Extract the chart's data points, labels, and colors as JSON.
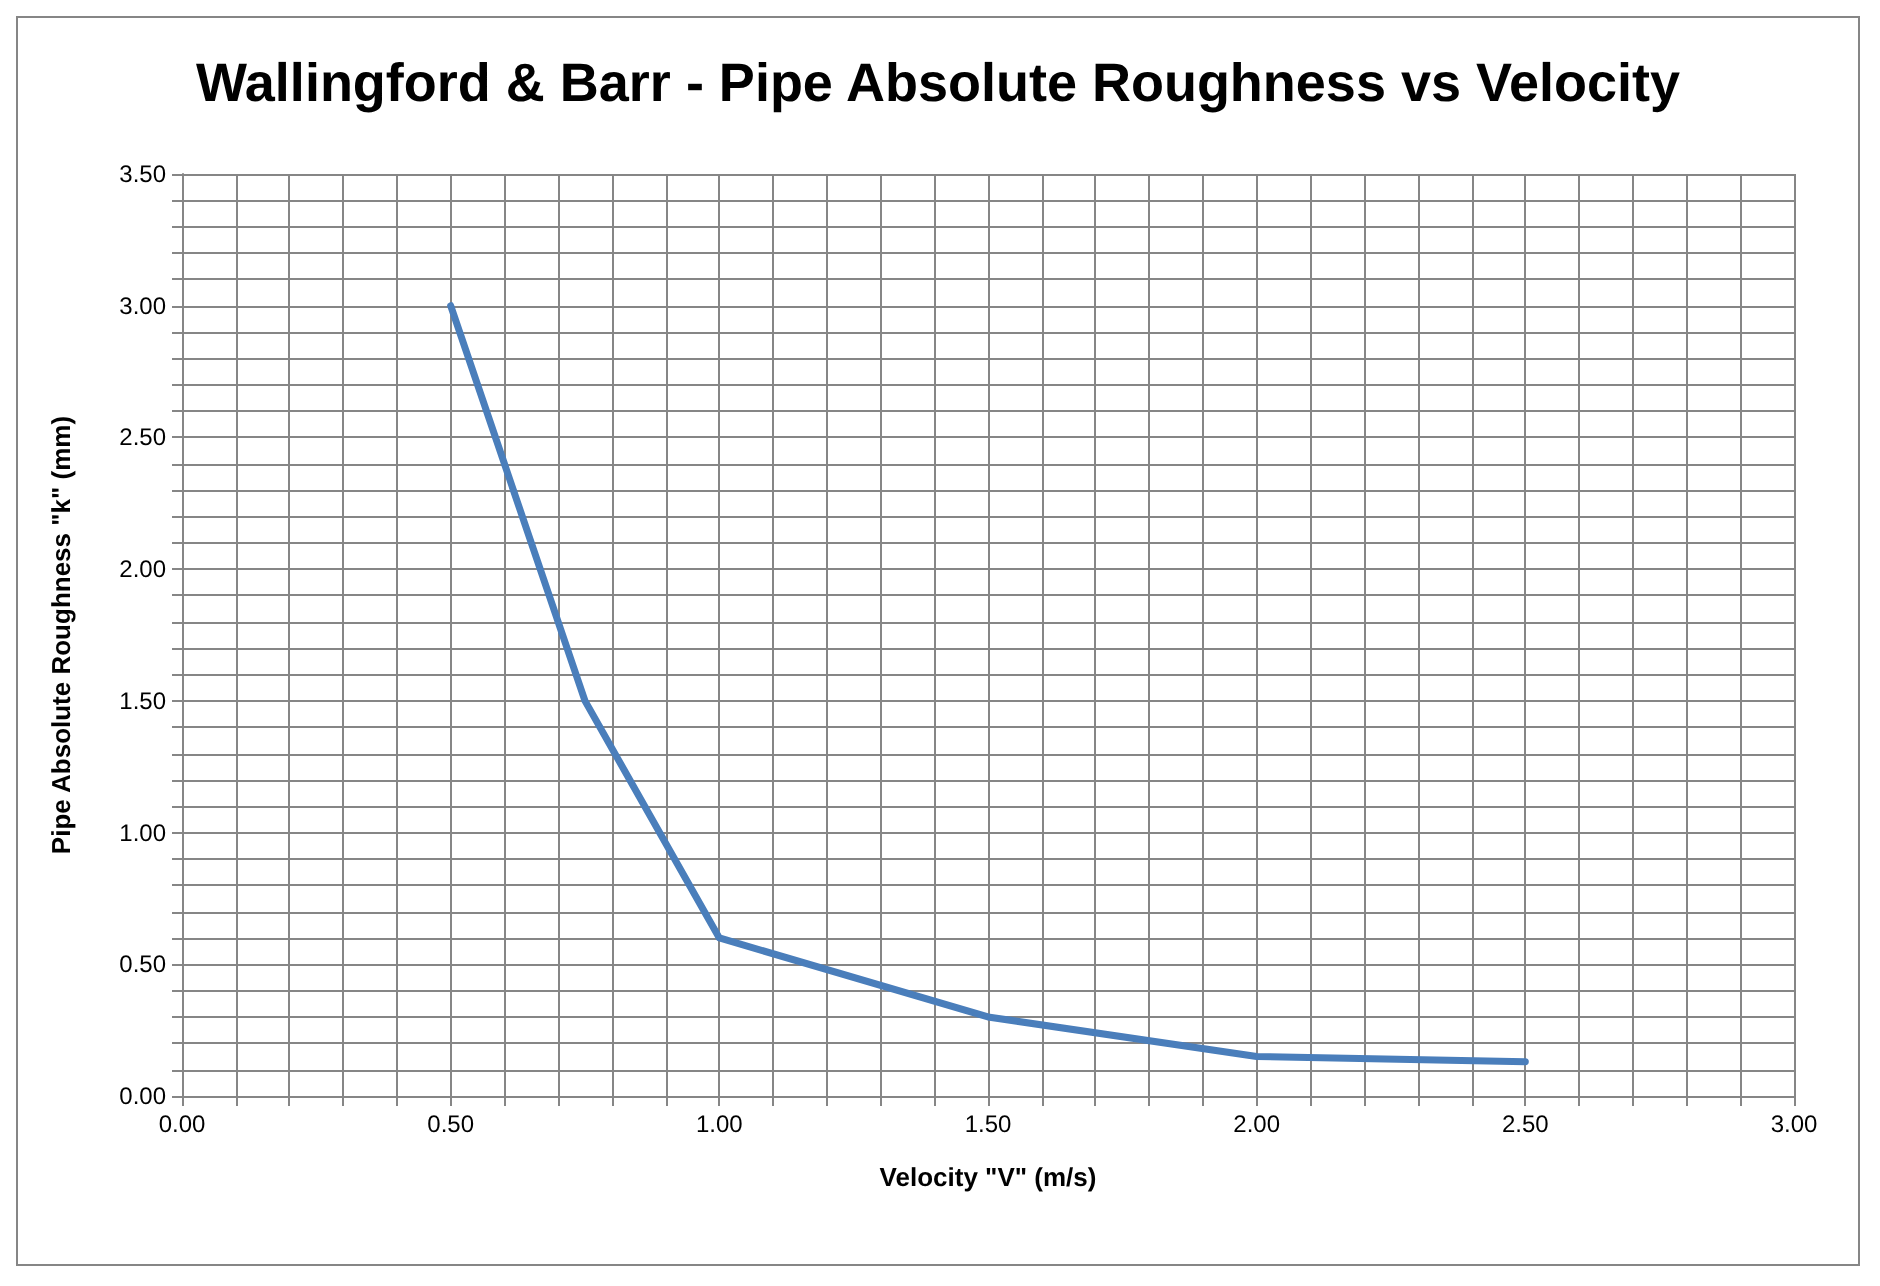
{
  "chart_data": {
    "type": "line",
    "title": "Wallingford & Barr - Pipe Absolute Roughness vs Velocity",
    "xlabel": "Velocity \"V\" (m/s)",
    "ylabel": "Pipe Absolute Roughness \"k\" (mm)",
    "x": [
      0.5,
      0.75,
      1.0,
      1.5,
      2.0,
      2.5
    ],
    "series": [
      {
        "color": "#4a7ebb",
        "values": [
          3.0,
          1.5,
          0.6,
          0.3,
          0.15,
          0.13
        ]
      }
    ],
    "xlim": [
      0,
      3
    ],
    "ylim": [
      0,
      3.5
    ],
    "xticks": [
      {
        "value": 0,
        "label": "0.00"
      },
      {
        "value": 0.1,
        "label": null
      },
      {
        "value": 0.2,
        "label": null
      },
      {
        "value": 0.3,
        "label": null
      },
      {
        "value": 0.4,
        "label": null
      },
      {
        "value": 0.5,
        "label": "0.50"
      },
      {
        "value": 0.6,
        "label": null
      },
      {
        "value": 0.7,
        "label": null
      },
      {
        "value": 0.8,
        "label": null
      },
      {
        "value": 0.9,
        "label": null
      },
      {
        "value": 1,
        "label": "1.00"
      },
      {
        "value": 1.1,
        "label": null
      },
      {
        "value": 1.2,
        "label": null
      },
      {
        "value": 1.3,
        "label": null
      },
      {
        "value": 1.4,
        "label": null
      },
      {
        "value": 1.5,
        "label": "1.50"
      },
      {
        "value": 1.6,
        "label": null
      },
      {
        "value": 1.7,
        "label": null
      },
      {
        "value": 1.8,
        "label": null
      },
      {
        "value": 1.9,
        "label": null
      },
      {
        "value": 2,
        "label": "2.00"
      },
      {
        "value": 2.1,
        "label": null
      },
      {
        "value": 2.2,
        "label": null
      },
      {
        "value": 2.3,
        "label": null
      },
      {
        "value": 2.4,
        "label": null
      },
      {
        "value": 2.5,
        "label": "2.50"
      },
      {
        "value": 2.6,
        "label": null
      },
      {
        "value": 2.7,
        "label": null
      },
      {
        "value": 2.8,
        "label": null
      },
      {
        "value": 2.9,
        "label": null
      },
      {
        "value": 3,
        "label": "3.00"
      }
    ],
    "yticks": [
      {
        "value": 0,
        "label": "0.00"
      },
      {
        "value": 0.1,
        "label": null
      },
      {
        "value": 0.2,
        "label": null
      },
      {
        "value": 0.3,
        "label": null
      },
      {
        "value": 0.4,
        "label": null
      },
      {
        "value": 0.5,
        "label": "0.50"
      },
      {
        "value": 0.6,
        "label": null
      },
      {
        "value": 0.7,
        "label": null
      },
      {
        "value": 0.8,
        "label": null
      },
      {
        "value": 0.9,
        "label": null
      },
      {
        "value": 1,
        "label": "1.00"
      },
      {
        "value": 1.1,
        "label": null
      },
      {
        "value": 1.2,
        "label": null
      },
      {
        "value": 1.3,
        "label": null
      },
      {
        "value": 1.4,
        "label": null
      },
      {
        "value": 1.5,
        "label": "1.50"
      },
      {
        "value": 1.6,
        "label": null
      },
      {
        "value": 1.7,
        "label": null
      },
      {
        "value": 1.8,
        "label": null
      },
      {
        "value": 1.9,
        "label": null
      },
      {
        "value": 2,
        "label": "2.00"
      },
      {
        "value": 2.1,
        "label": null
      },
      {
        "value": 2.2,
        "label": null
      },
      {
        "value": 2.3,
        "label": null
      },
      {
        "value": 2.4,
        "label": null
      },
      {
        "value": 2.5,
        "label": "2.50"
      },
      {
        "value": 2.6,
        "label": null
      },
      {
        "value": 2.7,
        "label": null
      },
      {
        "value": 2.8,
        "label": null
      },
      {
        "value": 2.9,
        "label": null
      },
      {
        "value": 3,
        "label": "3.00"
      },
      {
        "value": 3.1,
        "label": null
      },
      {
        "value": 3.2,
        "label": null
      },
      {
        "value": 3.3,
        "label": null
      },
      {
        "value": 3.4,
        "label": null
      },
      {
        "value": 3.5,
        "label": "3.50"
      }
    ],
    "grid": true,
    "marker": "none",
    "line_style": "solid"
  }
}
